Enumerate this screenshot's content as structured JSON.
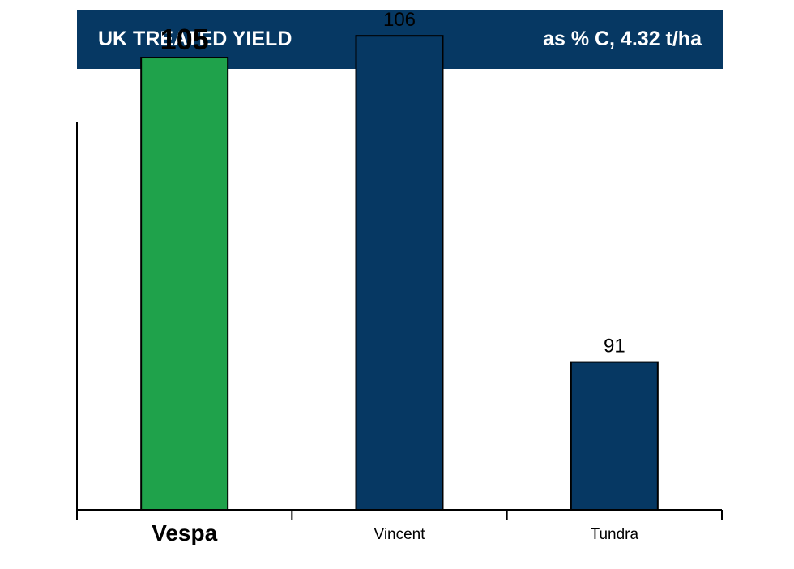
{
  "header": {
    "title": "UK TREATED YIELD",
    "subtitle": "as % C, 4.32 t/ha"
  },
  "colors": {
    "header_bg": "#063863",
    "highlight": "#1fa24b",
    "bar": "#063863",
    "axis": "#000000"
  },
  "chart_data": {
    "type": "bar",
    "title": "UK TREATED YIELD",
    "subtitle": "as % C, 4.32 t/ha",
    "categories": [
      "Vespa",
      "Vincent",
      "Tundra"
    ],
    "values": [
      105,
      106,
      91
    ],
    "data_labels": [
      "105",
      "106",
      "91"
    ],
    "highlight": "Vespa",
    "xlabel": "",
    "ylabel": "",
    "ylim": [
      84.2,
      107.2
    ],
    "grid": false,
    "legend": "none"
  }
}
